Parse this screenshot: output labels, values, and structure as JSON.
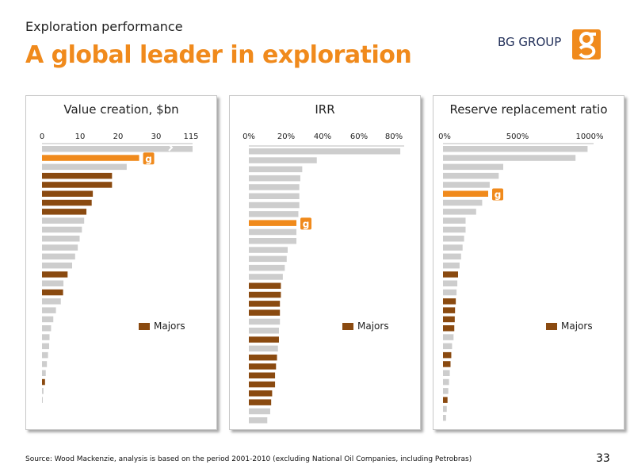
{
  "header": {
    "subtitle": "Exploration performance",
    "title": "A global leader in exploration",
    "brand": "BG GROUP"
  },
  "colors": {
    "orange": "#f08a1c",
    "brown": "#8a4a10",
    "grey": "#cdcdcd",
    "brand_blue": "#1f2d57"
  },
  "footer": {
    "source": "Source: Wood Mackenzie, analysis is based on the period 2001-2010 (excluding National Oil Companies, including Petrobras)",
    "page": "33"
  },
  "chart_data": [
    {
      "type": "bar",
      "title": "Value creation, $bn",
      "ticks": [
        "0",
        "10",
        "20",
        "30",
        "115"
      ],
      "axis_break": true,
      "xlim": [
        0,
        40
      ],
      "legend": "Majors",
      "values": [
        40,
        25.8,
        22.5,
        18.6,
        18.6,
        13.5,
        13.2,
        11.8,
        11.2,
        10.6,
        10,
        9.5,
        8.8,
        8,
        6.8,
        5.7,
        5.6,
        5,
        3.7,
        3,
        2.4,
        2,
        1.9,
        1.6,
        1.3,
        1,
        0.8,
        0.4,
        0.2
      ],
      "highlight": [
        1
      ],
      "majors": [
        3,
        4,
        5,
        6,
        7,
        14,
        16,
        26
      ]
    },
    {
      "type": "bar",
      "title": "IRR",
      "ticks": [
        "0%",
        "20%",
        "40%",
        "60%",
        "80%"
      ],
      "xlim": [
        0,
        80
      ],
      "legend": "Majors",
      "values": [
        78,
        35,
        27.5,
        26.5,
        26,
        26,
        26,
        25.5,
        24.5,
        24.5,
        24.5,
        20,
        19.5,
        18.5,
        17.5,
        16.5,
        16.5,
        16,
        16,
        16,
        15.5,
        15.5,
        15,
        14.5,
        14,
        13.5,
        13.5,
        12,
        11.5,
        11,
        9.5
      ],
      "highlight": [
        8
      ],
      "majors": [
        15,
        16,
        17,
        18,
        21,
        23,
        24,
        25,
        26,
        27,
        28
      ]
    },
    {
      "type": "bar",
      "title": "Reserve replacement ratio",
      "ticks": [
        "0%",
        "500%",
        "1000%"
      ],
      "xlim": [
        0,
        1000
      ],
      "legend": "Majors",
      "values": [
        960,
        880,
        400,
        370,
        310,
        300,
        260,
        220,
        150,
        150,
        140,
        130,
        120,
        110,
        100,
        95,
        90,
        85,
        80,
        78,
        75,
        70,
        60,
        55,
        50,
        45,
        40,
        35,
        30,
        25,
        20
      ],
      "highlight": [
        5
      ],
      "majors": [
        14,
        17,
        18,
        19,
        20,
        23,
        24,
        28
      ]
    }
  ]
}
